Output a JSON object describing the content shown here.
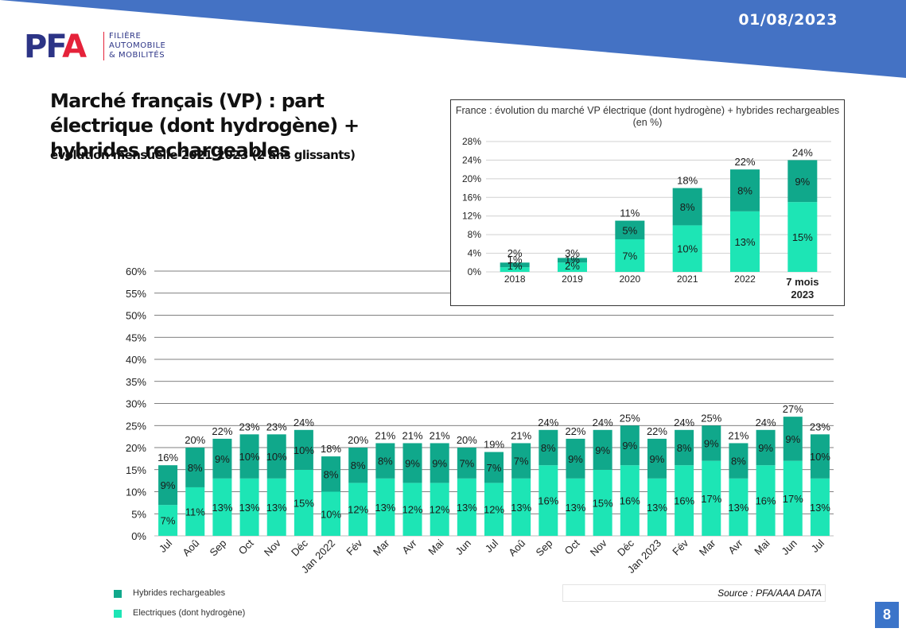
{
  "header": {
    "date": "01/08/2023"
  },
  "logo": {
    "letters_pf": "PF",
    "letter_a": "A",
    "lines": [
      "FILIÈRE",
      "AUTOMOBILE",
      "& MOBILITÉS"
    ]
  },
  "title": "Marché français (VP) : part électrique (dont hydrogène) + hybrides rechargeables",
  "subtitle": "évolution mensuelle 2021-2023 (2 ans glissants)",
  "source": "Source : PFA/AAA DATA",
  "page_number": "8",
  "colors": {
    "banner": "#4472c4",
    "electric": "#1de5b5",
    "hybrid": "#10a88b",
    "page_badge": "#3b74c9"
  },
  "legend": {
    "hybrid": "Hybrides rechargeables",
    "electric": "Electriques (dont hydrogène)"
  },
  "chart_data": [
    {
      "type": "bar",
      "stacked": true,
      "categories": [
        "Jul",
        "Aoû",
        "Sep",
        "Oct",
        "Nov",
        "Déc",
        "Jan 2022",
        "Fév",
        "Mar",
        "Avr",
        "Mai",
        "Jun",
        "Jul",
        "Aoû",
        "Sep",
        "Oct",
        "Nov",
        "Déc",
        "Jan 2023",
        "Fév",
        "Mar",
        "Avr",
        "Mai",
        "Jun",
        "Jul"
      ],
      "series": [
        {
          "name": "Electriques (dont hydrogène)",
          "values": [
            7,
            11,
            13,
            13,
            13,
            15,
            10,
            12,
            13,
            12,
            12,
            13,
            12,
            13,
            16,
            13,
            15,
            16,
            13,
            16,
            17,
            13,
            16,
            17,
            13
          ]
        },
        {
          "name": "Hybrides rechargeables",
          "values": [
            9,
            8,
            9,
            10,
            10,
            10,
            8,
            8,
            8,
            9,
            9,
            7,
            7,
            7,
            8,
            9,
            9,
            9,
            9,
            8,
            9,
            8,
            9,
            9,
            10
          ]
        }
      ],
      "bar_totals": [
        16,
        20,
        22,
        23,
        23,
        24,
        18,
        20,
        21,
        21,
        21,
        20,
        19,
        21,
        24,
        22,
        24,
        25,
        22,
        24,
        25,
        21,
        24,
        27,
        23
      ],
      "y_ticks": [
        "0%",
        "5%",
        "10%",
        "15%",
        "20%",
        "25%",
        "30%",
        "35%",
        "40%",
        "45%",
        "50%",
        "55%",
        "60%"
      ],
      "ylim": [
        0,
        60
      ],
      "grid": true,
      "legend_position": "bottom-left"
    },
    {
      "type": "bar",
      "stacked": true,
      "title": "France : évolution du marché VP électrique (dont hydrogène) + hybrides rechargeables (en %)",
      "categories": [
        "2018",
        "2019",
        "2020",
        "2021",
        "2022",
        "7 mois 2023"
      ],
      "series": [
        {
          "name": "Electriques (dont hydrogène)",
          "values": [
            1,
            2,
            7,
            10,
            13,
            15
          ]
        },
        {
          "name": "Hybrides rechargeables",
          "values": [
            1,
            1,
            5,
            8,
            8,
            9
          ]
        }
      ],
      "bar_totals": [
        2,
        3,
        11,
        18,
        22,
        24
      ],
      "y_ticks": [
        "0%",
        "4%",
        "8%",
        "12%",
        "16%",
        "20%",
        "24%",
        "28%"
      ],
      "ylim": [
        0,
        28
      ],
      "grid": true
    }
  ]
}
